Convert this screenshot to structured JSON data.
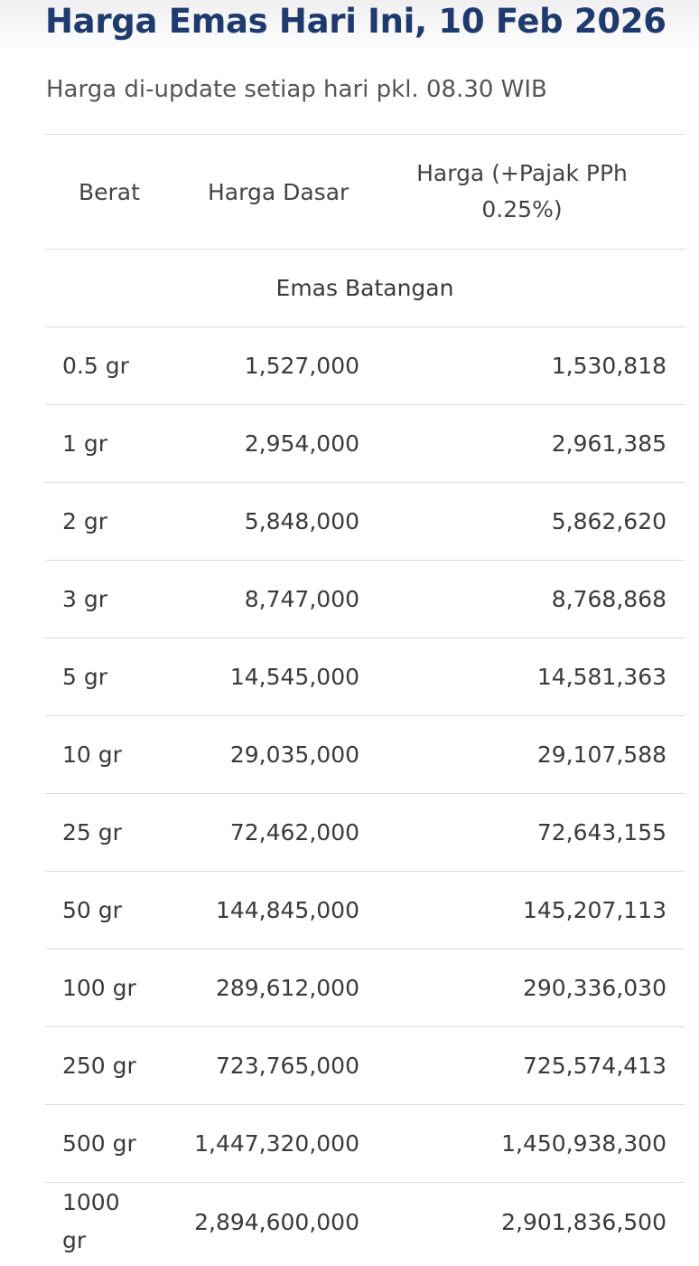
{
  "page": {
    "title": "Harga Emas Hari Ini, 10 Feb 2026",
    "subtitle": "Harga di-update setiap hari pkl. 08.30 WIB"
  },
  "table": {
    "headers": {
      "berat": "Berat",
      "harga_dasar": "Harga Dasar",
      "harga_pajak": "Harga (+Pajak PPh 0.25%)"
    },
    "group_label": "Emas Batangan",
    "rows": [
      {
        "berat": "0.5 gr",
        "harga_dasar": "1,527,000",
        "harga_pajak": "1,530,818"
      },
      {
        "berat": "1 gr",
        "harga_dasar": "2,954,000",
        "harga_pajak": "2,961,385"
      },
      {
        "berat": "2 gr",
        "harga_dasar": "5,848,000",
        "harga_pajak": "5,862,620"
      },
      {
        "berat": "3 gr",
        "harga_dasar": "8,747,000",
        "harga_pajak": "8,768,868"
      },
      {
        "berat": "5 gr",
        "harga_dasar": "14,545,000",
        "harga_pajak": "14,581,363"
      },
      {
        "berat": "10 gr",
        "harga_dasar": "29,035,000",
        "harga_pajak": "29,107,588"
      },
      {
        "berat": "25 gr",
        "harga_dasar": "72,462,000",
        "harga_pajak": "72,643,155"
      },
      {
        "berat": "50 gr",
        "harga_dasar": "144,845,000",
        "harga_pajak": "145,207,113"
      },
      {
        "berat": "100 gr",
        "harga_dasar": "289,612,000",
        "harga_pajak": "290,336,030"
      },
      {
        "berat": "250 gr",
        "harga_dasar": "723,765,000",
        "harga_pajak": "725,574,413"
      },
      {
        "berat": "500 gr",
        "harga_dasar": "1,447,320,000",
        "harga_pajak": "1,450,938,300"
      },
      {
        "berat": "1000 gr",
        "harga_dasar": "2,894,600,000",
        "harga_pajak": "2,901,836,500"
      }
    ]
  }
}
